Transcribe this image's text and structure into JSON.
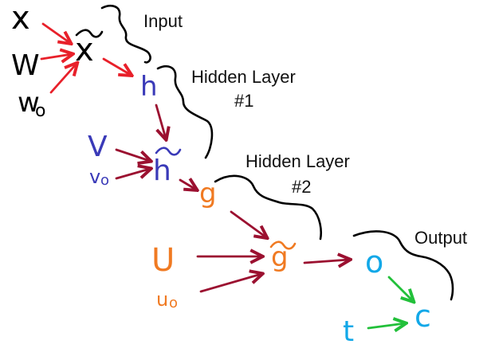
{
  "layers": {
    "input": "Input",
    "hidden1_line1": "Hidden Layer",
    "hidden1_line2": "#1",
    "hidden2_line1": "Hidden Layer",
    "hidden2_line2": "#2",
    "output": "Output"
  },
  "nodes": {
    "x": "x",
    "w": "W",
    "w0": "w",
    "w0_sub": "o",
    "x_tilde": "x",
    "h": "h",
    "v": "V",
    "v0": "v",
    "v0_sub": "o",
    "h_tilde": "h",
    "g": "g",
    "u": "U",
    "u0": "u",
    "u0_sub": "o",
    "g_tilde": "g",
    "o": "o",
    "c": "c",
    "t": "t"
  },
  "colors": {
    "black": "#000000",
    "red": "#e8202a",
    "dark_red": "#9b1030",
    "blue": "#3a3ab8",
    "orange": "#f07a22",
    "cyan": "#12a8e8",
    "green": "#22c03a"
  }
}
